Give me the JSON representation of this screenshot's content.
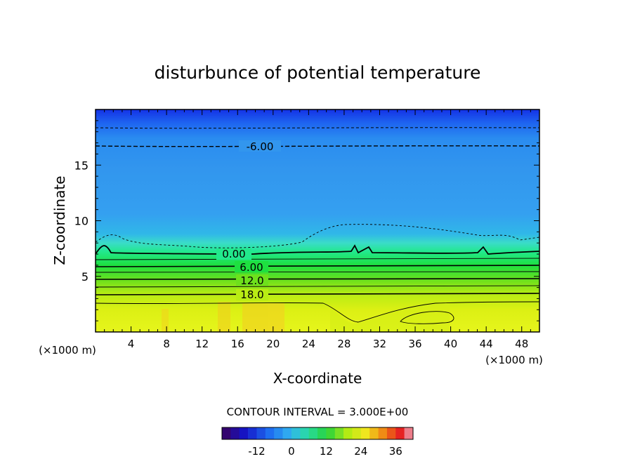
{
  "chart_data": {
    "type": "heatmap",
    "title": "disturbunce of potential temperature",
    "xlabel": "X-coordinate",
    "ylabel": "Z-coordinate",
    "x_unit": "(×1000 m)",
    "y_unit": "(×1000 m)",
    "xlim": [
      0,
      50
    ],
    "ylim": [
      0,
      20
    ],
    "xticks": [
      "4",
      "8",
      "12",
      "16",
      "20",
      "24",
      "28",
      "32",
      "36",
      "40",
      "44",
      "48"
    ],
    "yticks": [
      "5",
      "10",
      "15"
    ],
    "contour_labels": [
      "-6.00",
      "0.00",
      "6.00",
      "12.0",
      "18.0"
    ],
    "contour_interval_text": "CONTOUR INTERVAL = 3.000E+00",
    "colorbar": {
      "range": [
        -24,
        42
      ],
      "ticks": [
        "-12",
        "0",
        "12",
        "24",
        "36"
      ]
    }
  }
}
